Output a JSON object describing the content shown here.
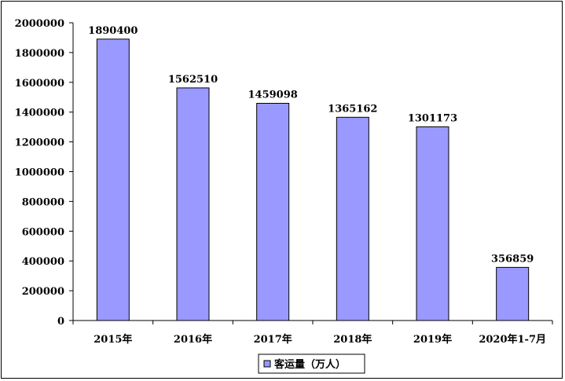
{
  "chart_data": {
    "type": "bar",
    "categories": [
      "2015年",
      "2016年",
      "2017年",
      "2018年",
      "2019年",
      "2020年1-7月"
    ],
    "series": [
      {
        "name": "客运量（万人）",
        "values": [
          1890400,
          1562510,
          1459098,
          1365162,
          1301173,
          356859
        ]
      }
    ],
    "data_labels": [
      "1890400",
      "1562510",
      "1459098",
      "1365162",
      "1301173",
      "356859"
    ],
    "yticks": [
      0,
      200000,
      400000,
      600000,
      800000,
      1000000,
      1200000,
      1400000,
      1600000,
      1800000,
      2000000
    ],
    "ylim": [
      0,
      2000000
    ],
    "legend_position": "bottom-center",
    "grid": false,
    "colors": {
      "bar": "#9999ff",
      "bar_border": "#000000"
    }
  }
}
